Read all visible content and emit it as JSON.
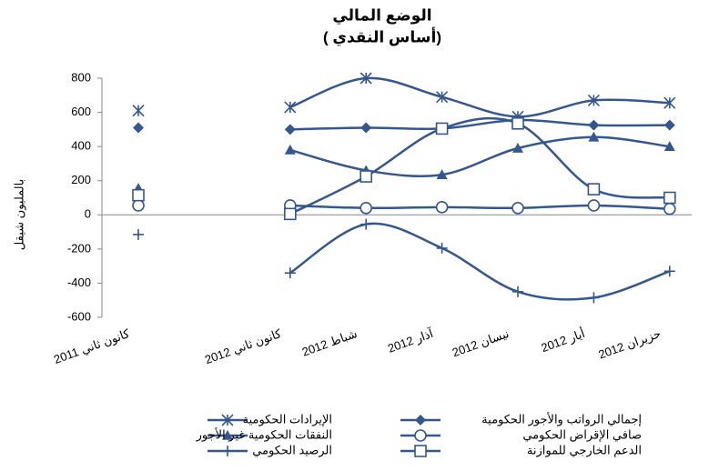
{
  "chart_data": {
    "type": "line",
    "title": "الوضع المالي",
    "subtitle": "( أساس النقدي)",
    "y_label": "بالمليون شيقل",
    "categories": [
      "كانون ثاني 2011",
      null,
      "كانون ثاني 2012",
      "شباط 2012",
      "آذار 2012",
      "نيسان 2012",
      "أيار 2012",
      "حزيران 2012"
    ],
    "ylim": [
      -600,
      800
    ],
    "yticks": [
      -600,
      -400,
      -200,
      0,
      200,
      400,
      600,
      800
    ],
    "smooth": true,
    "series": [
      {
        "name": "الإيرادات الحكومية",
        "color": "#34578f",
        "marker": "asterisk",
        "values": [
          610,
          null,
          630,
          800,
          690,
          575,
          670,
          655
        ]
      },
      {
        "name": "إجمالي الرواتب والأجور الحكومية",
        "color": "#34578f",
        "marker": "diamond",
        "values": [
          510,
          null,
          500,
          510,
          505,
          555,
          525,
          525
        ]
      },
      {
        "name": "النفقات الحكومية غير الأجور",
        "color": "#34578f",
        "marker": "triangle",
        "values": [
          155,
          null,
          380,
          260,
          235,
          390,
          455,
          400
        ]
      },
      {
        "name": "صافي الإقراض الحكومي",
        "color": "#34578f",
        "marker": "circle",
        "values": [
          55,
          null,
          55,
          40,
          45,
          40,
          55,
          35
        ]
      },
      {
        "name": "الرصيد الحكومي",
        "color": "#34578f",
        "marker": "plus",
        "values": [
          -115,
          null,
          -340,
          -55,
          -195,
          -450,
          -485,
          -330
        ]
      },
      {
        "name": "الدعم الخارجي للموازنة",
        "color": "#34578f",
        "marker": "square",
        "values": [
          115,
          null,
          5,
          225,
          505,
          535,
          150,
          100
        ]
      }
    ]
  }
}
